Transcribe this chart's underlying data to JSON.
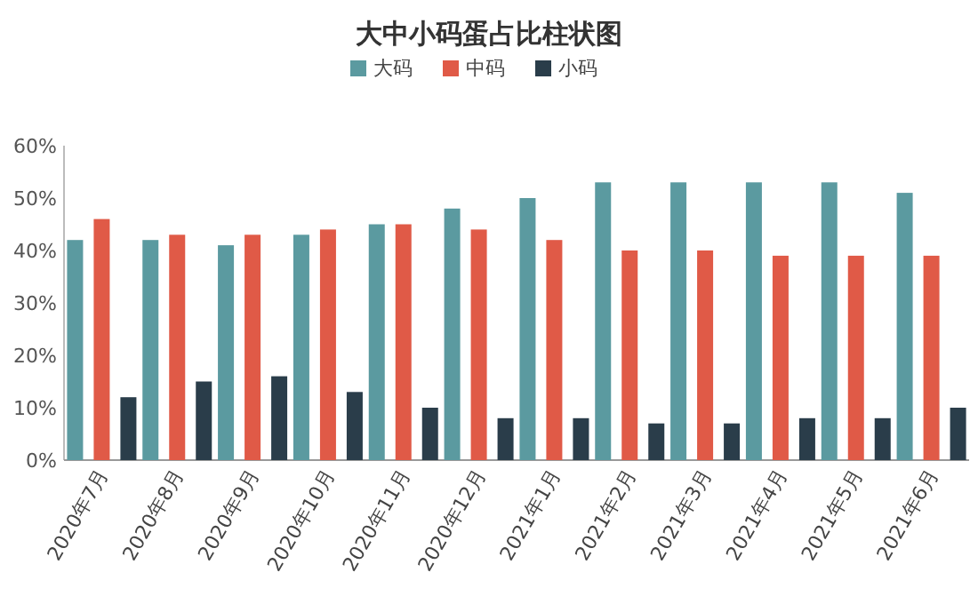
{
  "chart_data": {
    "type": "bar",
    "title": "大中小码蛋占比柱状图",
    "categories": [
      "2020年7月",
      "2020年8月",
      "2020年9月",
      "2020年10月",
      "2020年11月",
      "2020年12月",
      "2021年1月",
      "2021年2月",
      "2021年3月",
      "2021年4月",
      "2021年5月",
      "2021年6月"
    ],
    "series": [
      {
        "name": "大码",
        "color": "#5b9aa0",
        "values": [
          42,
          42,
          41,
          43,
          45,
          48,
          50,
          53,
          53,
          53,
          53,
          51
        ]
      },
      {
        "name": "中码",
        "color": "#e05a47",
        "values": [
          46,
          43,
          43,
          44,
          45,
          44,
          42,
          40,
          40,
          39,
          39,
          39
        ]
      },
      {
        "name": "小码",
        "color": "#2a3d4a",
        "values": [
          12,
          15,
          16,
          13,
          10,
          8,
          8,
          7,
          7,
          8,
          8,
          10
        ]
      }
    ],
    "ylim": [
      0,
      60
    ],
    "yticks": [
      {
        "value": 0,
        "label": "0%"
      },
      {
        "value": 10,
        "label": "10%"
      },
      {
        "value": 20,
        "label": "20%"
      },
      {
        "value": 30,
        "label": "30%"
      },
      {
        "value": 40,
        "label": "40%"
      },
      {
        "value": 50,
        "label": "50%"
      },
      {
        "value": 60,
        "label": "60%"
      }
    ],
    "legend": "top"
  }
}
